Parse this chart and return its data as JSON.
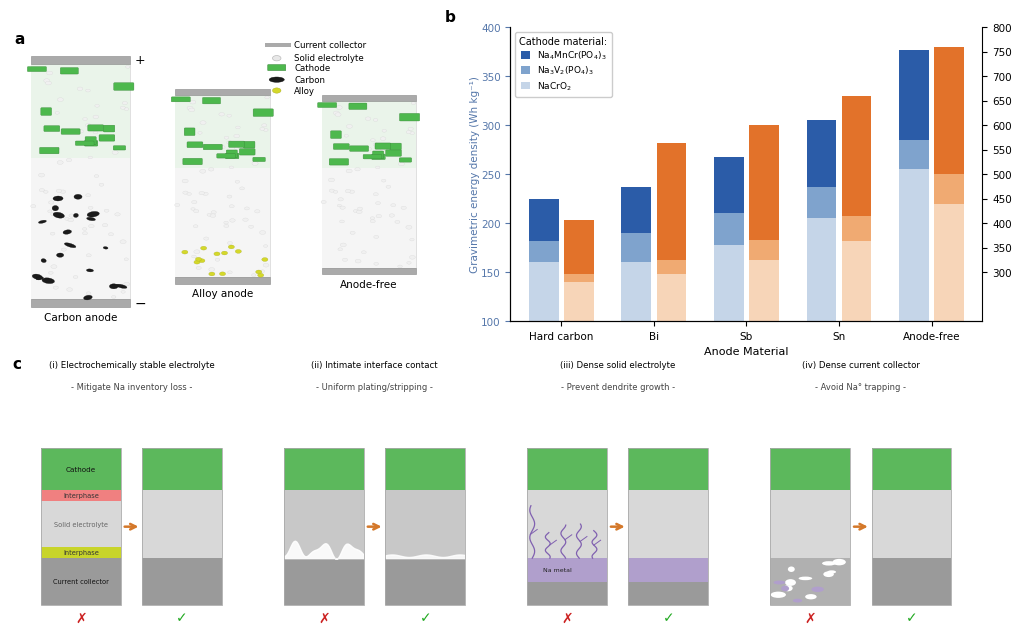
{
  "panel_b": {
    "categories": [
      "Hard carbon",
      "Bi",
      "Sb",
      "Sn",
      "Anode-free"
    ],
    "ylabel_left": "Gravimetric energy density (Wh kg⁻¹)",
    "ylim": [
      100,
      400
    ],
    "yticks_left": [
      100,
      150,
      200,
      250,
      300,
      350,
      400
    ],
    "yticks_right": [
      300,
      350,
      400,
      450,
      500,
      550,
      600,
      650,
      700,
      750,
      800
    ],
    "xlabel": "Anode Material",
    "dark_blue": "#2b5ca8",
    "light_blue": "#7fa3cd",
    "pale_blue": "#c5d5e8",
    "dark_orange": "#e2722a",
    "light_orange": "#f0aa72",
    "pale_orange": "#f7d5b8",
    "blue_stack": {
      "Hard carbon": [
        160,
        22,
        43
      ],
      "Bi": [
        160,
        30,
        47
      ],
      "Sb": [
        178,
        32,
        58
      ],
      "Sn": [
        205,
        32,
        68
      ],
      "Anode-free": [
        255,
        30,
        92
      ]
    },
    "orange_stack": {
      "Hard carbon": [
        143,
        8,
        52
      ],
      "Bi": [
        162,
        2,
        118
      ],
      "Sb": [
        182,
        2,
        116
      ],
      "Sn": [
        207,
        0,
        123
      ],
      "Anode-free": [
        220,
        30,
        130
      ]
    }
  },
  "panel_c": {
    "titles": [
      "(i) Electrochemically stable electrolyte",
      "(ii) Intimate interface contact",
      "(iii) Dense solid electrolyte",
      "(iv) Dense current collector"
    ],
    "subtitles": [
      "- Mitigate Na inventory loss -",
      "- Uniform plating/stripping -",
      "- Prevent dendrite growth -",
      "- Avoid Na° trapping -"
    ]
  },
  "colors": {
    "green_cathode": "#5cb85c",
    "light_gray_elec": "#d8d8d8",
    "medium_gray_elec": "#c8c8c8",
    "dark_gray_cc": "#9a9a9a",
    "red_interphase": "#f08080",
    "yellow_interphase": "#c8d42a",
    "purple_na": "#b09fcc",
    "arrow_orange": "#d4782a"
  }
}
